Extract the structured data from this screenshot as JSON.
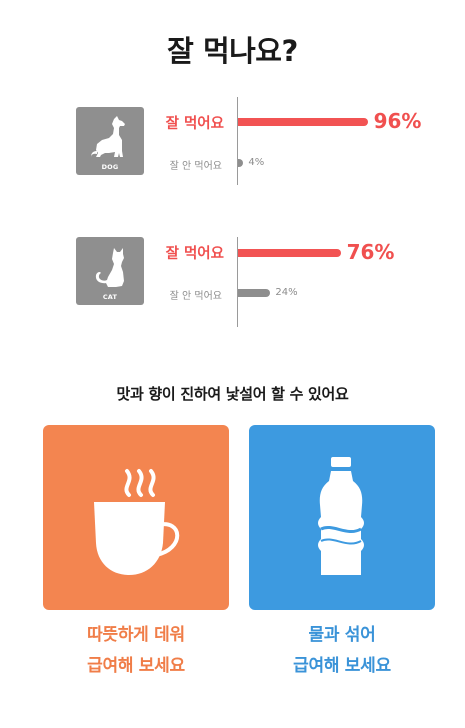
{
  "title": "잘 먹나요?",
  "chart_data": {
    "type": "bar",
    "categories": [
      "DOG",
      "CAT"
    ],
    "series": [
      {
        "name": "잘 먹어요",
        "values": [
          96,
          76
        ],
        "labels": [
          "96%",
          "76%"
        ]
      },
      {
        "name": "잘 안 먹어요",
        "values": [
          4,
          24
        ],
        "labels": [
          "4%",
          "24%"
        ]
      }
    ],
    "xlim": [
      0,
      100
    ],
    "colors": {
      "eats_well": "#f25353",
      "does_not": "#8e8e8e",
      "tile": "#8f8f8f"
    }
  },
  "subtitle": "맛과 향이 진하여 낯설어 할 수 있어요",
  "tips": [
    {
      "icon": "coffee-cup-icon",
      "line1": "따뜻하게 데워",
      "line2": "급여해 보세요",
      "color": "#f38550"
    },
    {
      "icon": "water-bottle-icon",
      "line1": "물과 섞어",
      "line2": "급여해 보세요",
      "color": "#3d9ae0"
    }
  ]
}
